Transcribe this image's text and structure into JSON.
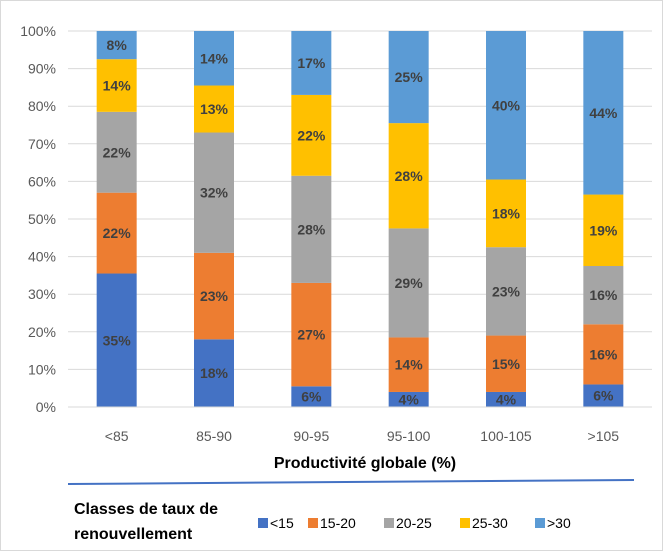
{
  "chart_data": {
    "type": "bar",
    "stacked": true,
    "title": "",
    "xlabel": "Productivité globale (%)",
    "ylabel": "",
    "ylim": [
      0,
      100
    ],
    "y_ticks": [
      "0%",
      "10%",
      "20%",
      "30%",
      "40%",
      "50%",
      "60%",
      "70%",
      "80%",
      "90%",
      "100%"
    ],
    "categories": [
      "<85",
      "85-90",
      "90-95",
      "95-100",
      "100-105",
      ">105"
    ],
    "series": [
      {
        "name": "<15",
        "color": "#4472C4",
        "values": [
          35.5,
          18,
          5.5,
          4,
          4,
          6
        ],
        "labels": [
          "35%",
          "18%",
          "6%",
          "4%",
          "4%",
          "6%"
        ]
      },
      {
        "name": "15-20",
        "color": "#ED7D31",
        "values": [
          21.5,
          23,
          27.5,
          14.5,
          15,
          16
        ],
        "labels": [
          "22%",
          "23%",
          "27%",
          "14%",
          "15%",
          "16%"
        ]
      },
      {
        "name": "20-25",
        "color": "#A5A5A5",
        "values": [
          21.5,
          32,
          28.5,
          29,
          23.5,
          15.5
        ],
        "labels": [
          "22%",
          "32%",
          "28%",
          "29%",
          "23%",
          "16%"
        ]
      },
      {
        "name": "25-30",
        "color": "#FFC000",
        "values": [
          14,
          12.5,
          21.5,
          28,
          18,
          19
        ],
        "labels": [
          "14%",
          "13%",
          "22%",
          "28%",
          "18%",
          "19%"
        ]
      },
      {
        "name": ">30",
        "color": "#5B9BD5",
        "values": [
          7.5,
          14.5,
          17,
          24.5,
          39.5,
          43.5
        ],
        "labels": [
          "8%",
          "14%",
          "17%",
          "25%",
          "40%",
          "44%"
        ]
      }
    ],
    "legend": {
      "title_lines": [
        "Classes de taux de",
        "renouvellement"
      ],
      "placement": "bottom"
    },
    "grid": true,
    "separator_color": "#4472C4"
  }
}
